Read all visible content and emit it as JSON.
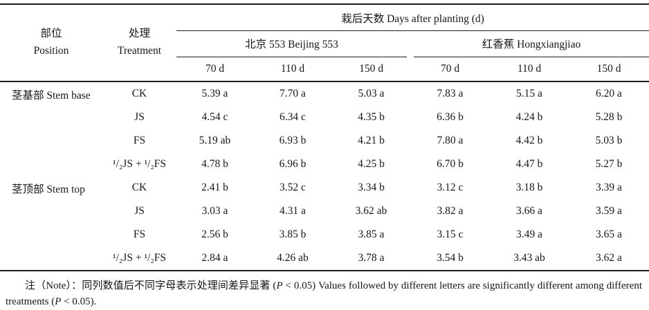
{
  "table": {
    "days_group_header": "栽后天数 Days after planting (d)",
    "position_header_zh": "部位",
    "position_header_en": "Position",
    "treatment_header_zh": "处理",
    "treatment_header_en": "Treatment",
    "cultivar_groups": [
      {
        "name": "北京 553 Beijing 553",
        "day_columns": [
          "70 d",
          "110 d",
          "150 d"
        ]
      },
      {
        "name": "红香蕉 Hongxiangjiao",
        "day_columns": [
          "70 d",
          "110 d",
          "150 d"
        ]
      }
    ],
    "row_groups": [
      {
        "position": "茎基部 Stem base",
        "rows": [
          {
            "treatment": "CK",
            "values": [
              "5.39 a",
              "7.70 a",
              "5.03 a",
              "7.83 a",
              "5.15 a",
              "6.20 a"
            ]
          },
          {
            "treatment": "JS",
            "values": [
              "4.54 c",
              "6.34 c",
              "4.35 b",
              "6.36 b",
              "4.24 b",
              "5.28 b"
            ]
          },
          {
            "treatment": "FS",
            "values": [
              "5.19 ab",
              "6.93 b",
              "4.21 b",
              "7.80 a",
              "4.42 b",
              "5.03 b"
            ]
          },
          {
            "treatment": "¹/₂JS + ¹/₂FS",
            "values": [
              "4.78 b",
              "6.96 b",
              "4.25 b",
              "6.70 b",
              "4.47 b",
              "5.27 b"
            ]
          }
        ]
      },
      {
        "position": "茎顶部 Stem top",
        "rows": [
          {
            "treatment": "CK",
            "values": [
              "2.41 b",
              "3.52 c",
              "3.34 b",
              "3.12 c",
              "3.18 b",
              "3.39 a"
            ]
          },
          {
            "treatment": "JS",
            "values": [
              "3.03 a",
              "4.31 a",
              "3.62 ab",
              "3.82 a",
              "3.66 a",
              "3.59 a"
            ]
          },
          {
            "treatment": "FS",
            "values": [
              "2.56 b",
              "3.85 b",
              "3.85 a",
              "3.15 c",
              "3.49 a",
              "3.65 a"
            ]
          },
          {
            "treatment": "¹/₂JS + ¹/₂FS",
            "values": [
              "2.84 a",
              "4.26 ab",
              "3.78 a",
              "3.54 b",
              "3.43 ab",
              "3.62 a"
            ]
          }
        ]
      }
    ]
  },
  "footnote": {
    "segments": [
      {
        "text": "注（Note）：同列数值后不同字母表示处理间差异显著 (",
        "italic": false
      },
      {
        "text": "P",
        "italic": true
      },
      {
        "text": " < 0.05) Values followed by different letters are significantly different among different treatments (",
        "italic": false
      },
      {
        "text": "P",
        "italic": true
      },
      {
        "text": " < 0.05).",
        "italic": false
      }
    ]
  }
}
